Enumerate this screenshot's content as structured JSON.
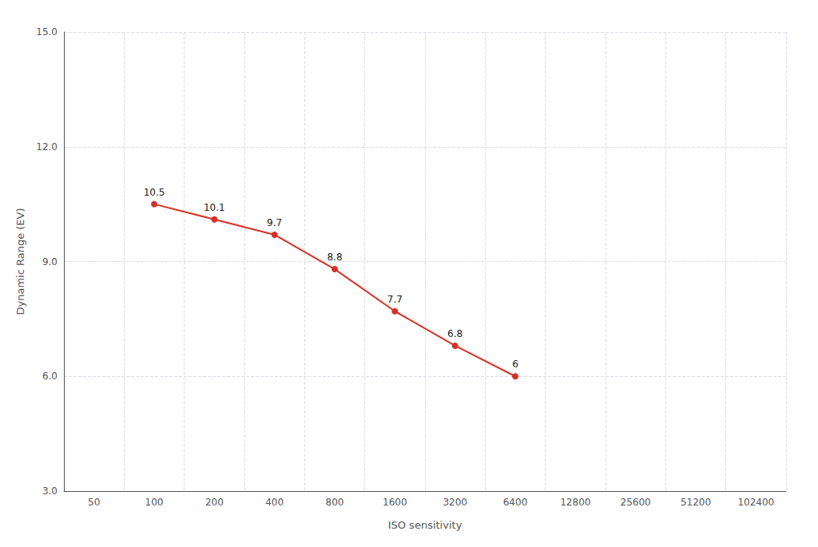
{
  "chart_data": {
    "type": "line",
    "xlabel": "ISO sensitivity",
    "ylabel": "Dynamic Range (EV)",
    "categories": [
      "50",
      "100",
      "200",
      "400",
      "800",
      "1600",
      "3200",
      "6400",
      "12800",
      "25600",
      "51200",
      "102400"
    ],
    "values": [
      null,
      10.5,
      10.1,
      9.7,
      8.8,
      7.7,
      6.8,
      6.0,
      null,
      null,
      null,
      null
    ],
    "color": "#d93025",
    "marker": "circle",
    "data_labels": true,
    "ylim": [
      3.0,
      15.0
    ],
    "yticks": [
      {
        "value": 3.0,
        "label": "3.0"
      },
      {
        "value": 6.0,
        "label": "6.0"
      },
      {
        "value": 9.0,
        "label": "9.0"
      },
      {
        "value": 12.0,
        "label": "12.0"
      },
      {
        "value": 15.0,
        "label": "15.0"
      }
    ],
    "grid": true
  }
}
